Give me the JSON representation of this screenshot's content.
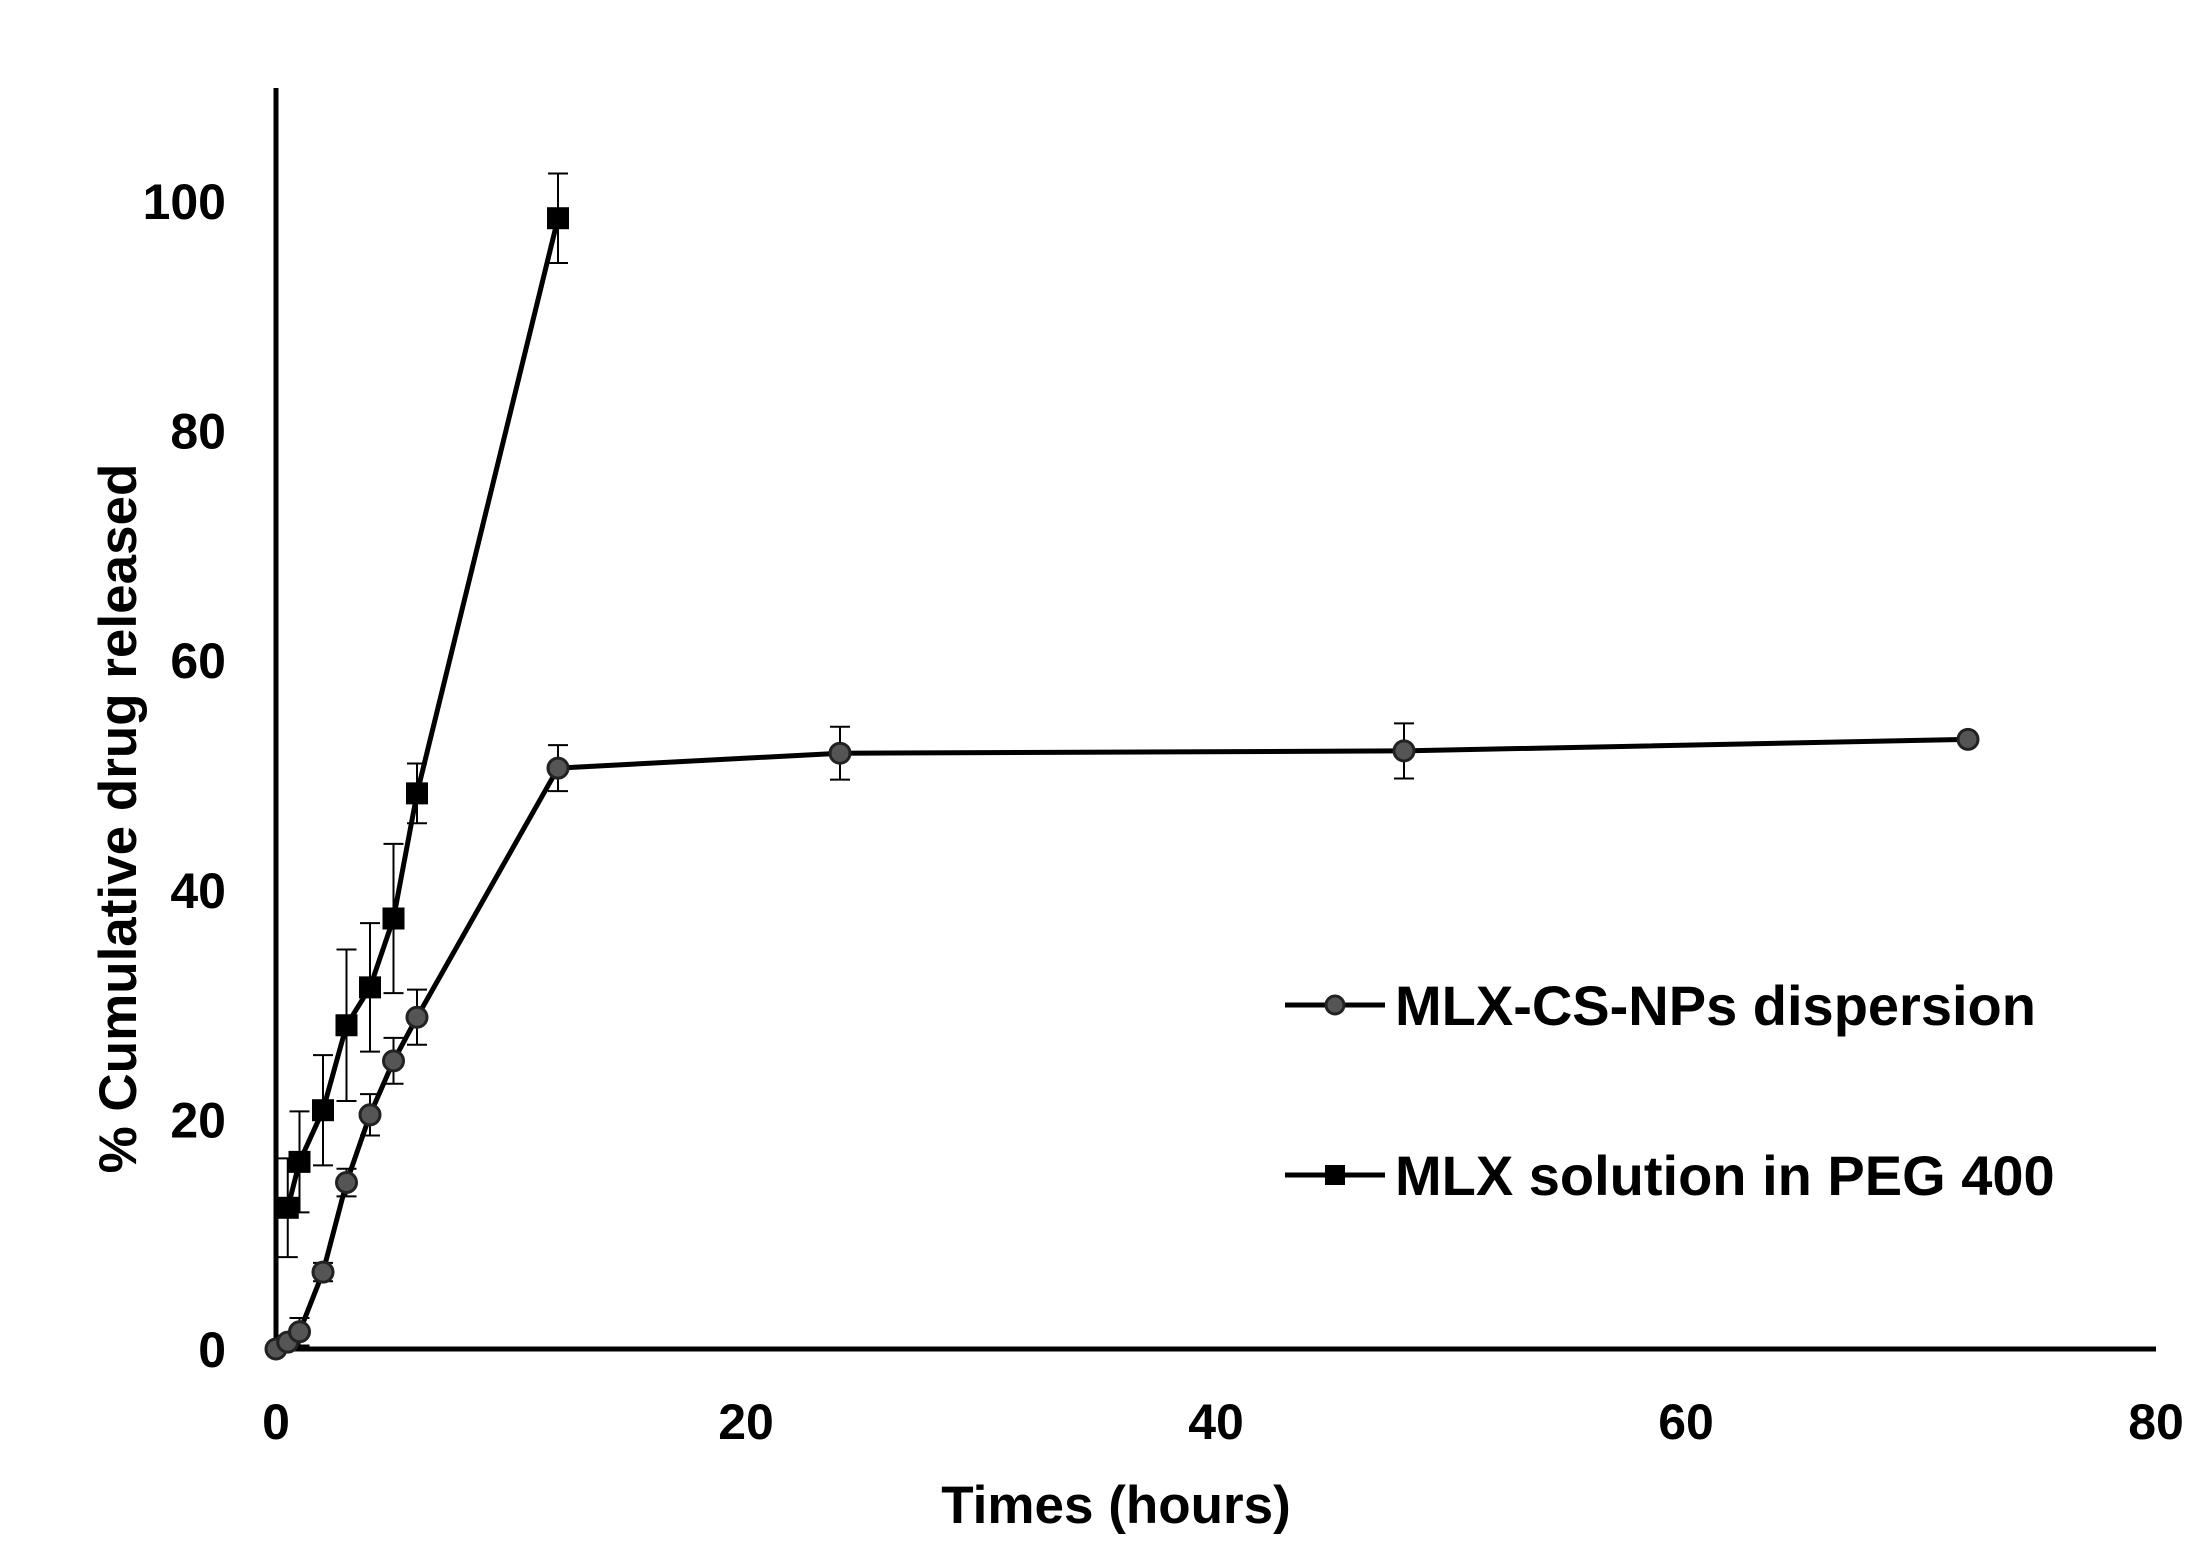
{
  "chart_data": {
    "type": "line",
    "title": "",
    "xlabel": "Times (hours)",
    "ylabel": "% Cumulative drug released",
    "xlim": [
      0,
      80
    ],
    "ylim": [
      0,
      110
    ],
    "xticks": [
      0,
      20,
      40,
      60,
      80
    ],
    "yticks": [
      0,
      20,
      40,
      60,
      80,
      100
    ],
    "grid": false,
    "legend_position": "center-right",
    "series": [
      {
        "name": "MLX-CS-NPs dispersion",
        "marker": "circle",
        "color": "#555555",
        "x": [
          0,
          0.5,
          1,
          2,
          3,
          4,
          5,
          6,
          12,
          24,
          48,
          72
        ],
        "y": [
          0,
          0.6,
          1.5,
          6.7,
          14.5,
          20.4,
          25.1,
          28.9,
          50.6,
          51.9,
          52.1,
          53.1
        ],
        "error": [
          0,
          0.5,
          1.2,
          0.8,
          1.2,
          1.8,
          2.0,
          2.4,
          2.0,
          2.3,
          2.4,
          0
        ]
      },
      {
        "name": "MLX solution in PEG 400",
        "marker": "square",
        "color": "#000000",
        "x": [
          0.5,
          1,
          2,
          3,
          4,
          5,
          6,
          12
        ],
        "y": [
          12.3,
          16.3,
          20.8,
          28.2,
          31.5,
          37.5,
          48.4,
          98.5
        ],
        "error": [
          4.3,
          4.4,
          4.8,
          6.6,
          5.6,
          6.5,
          2.6,
          3.9
        ]
      }
    ]
  }
}
